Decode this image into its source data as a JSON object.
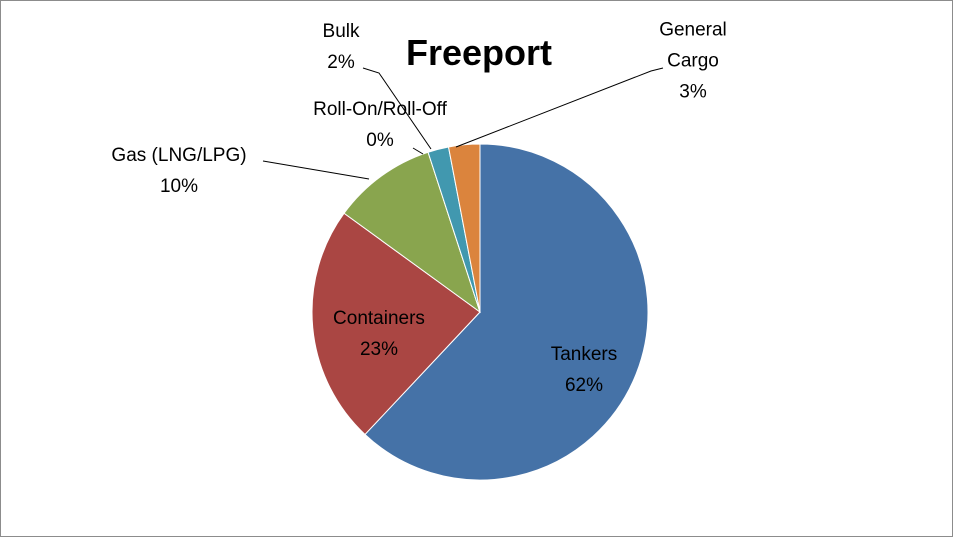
{
  "chart_data": {
    "type": "pie",
    "title": "Freeport",
    "categories": [
      "Tankers",
      "Containers",
      "Gas (LNG/LPG)",
      "Roll-On/Roll-Off",
      "Bulk",
      "General Cargo"
    ],
    "values": [
      62,
      23,
      10,
      0,
      2,
      3
    ],
    "value_labels": [
      "62%",
      "23%",
      "10%",
      "0%",
      "2%",
      "3%"
    ],
    "colors": [
      "#4572a7",
      "#aa4643",
      "#89a54e",
      "#71588f",
      "#4198af",
      "#db843d"
    ]
  }
}
